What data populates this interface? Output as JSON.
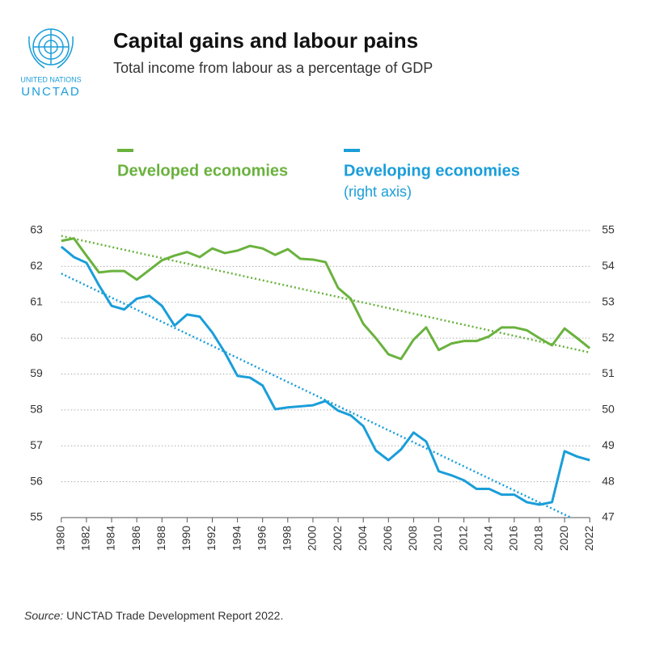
{
  "header": {
    "org": "UNITED NATIONS",
    "org_short": "UNCTAD"
  },
  "chart_data": {
    "type": "line",
    "title": "Capital gains and labour pains",
    "subtitle": "Total income from labour as a percentage of GDP",
    "x": [
      1980,
      1981,
      1982,
      1983,
      1984,
      1985,
      1986,
      1987,
      1988,
      1989,
      1990,
      1991,
      1992,
      1993,
      1994,
      1995,
      1996,
      1997,
      1998,
      1999,
      2000,
      2001,
      2002,
      2003,
      2004,
      2005,
      2006,
      2007,
      2008,
      2009,
      2010,
      2011,
      2012,
      2013,
      2014,
      2015,
      2016,
      2017,
      2018,
      2019,
      2020,
      2021,
      2022
    ],
    "series": [
      {
        "name": "Developed economies",
        "color": "#6ab23e",
        "axis": "y",
        "values": [
          62.71,
          62.78,
          62.3,
          61.83,
          61.87,
          61.87,
          61.63,
          61.9,
          62.17,
          62.3,
          62.4,
          62.26,
          62.5,
          62.37,
          62.44,
          62.57,
          62.5,
          62.32,
          62.48,
          62.21,
          62.19,
          62.12,
          61.4,
          61.1,
          60.4,
          60.0,
          59.55,
          59.42,
          59.96,
          60.3,
          59.67,
          59.85,
          59.92,
          59.92,
          60.05,
          60.3,
          60.3,
          60.22,
          60.0,
          59.8,
          60.27,
          60.0,
          59.72
        ]
      },
      {
        "name": "Developing economies",
        "axis_note": "(right axis)",
        "color": "#1a9ed9",
        "axis": "y2",
        "values": [
          54.55,
          54.26,
          54.1,
          53.47,
          52.9,
          52.8,
          53.1,
          53.18,
          52.9,
          52.35,
          52.66,
          52.6,
          52.16,
          51.6,
          50.95,
          50.9,
          50.68,
          50.02,
          50.07,
          50.1,
          50.13,
          50.25,
          49.98,
          49.85,
          49.55,
          48.87,
          48.6,
          48.9,
          49.37,
          49.12,
          48.29,
          48.18,
          48.04,
          47.8,
          47.8,
          47.64,
          47.64,
          47.43,
          47.36,
          47.43,
          48.85,
          48.7,
          48.6
        ]
      }
    ],
    "trend": [
      {
        "color": "#6ab23e",
        "axis": "y",
        "x": [
          1980,
          2022
        ],
        "values": [
          62.85,
          59.6
        ]
      },
      {
        "color": "#1a9ed9",
        "axis": "y2",
        "x": [
          1980,
          2020.5
        ],
        "values": [
          53.8,
          47.0
        ]
      }
    ],
    "xlim": [
      1979.5,
      2022.5
    ],
    "xticks": [
      1980,
      1982,
      1984,
      1986,
      1988,
      1990,
      1992,
      1994,
      1996,
      1998,
      2000,
      2002,
      2004,
      2006,
      2008,
      2010,
      2012,
      2014,
      2016,
      2018,
      2020,
      2022
    ],
    "ylim": [
      55,
      63
    ],
    "yticks": [
      55,
      56,
      57,
      58,
      59,
      60,
      61,
      62,
      63
    ],
    "y2lim": [
      47,
      55
    ],
    "y2ticks": [
      47,
      48,
      49,
      50,
      51,
      52,
      53,
      54,
      55
    ],
    "grid": true,
    "source_label": "Source:",
    "source": "UNCTAD Trade Development Report 2022."
  }
}
